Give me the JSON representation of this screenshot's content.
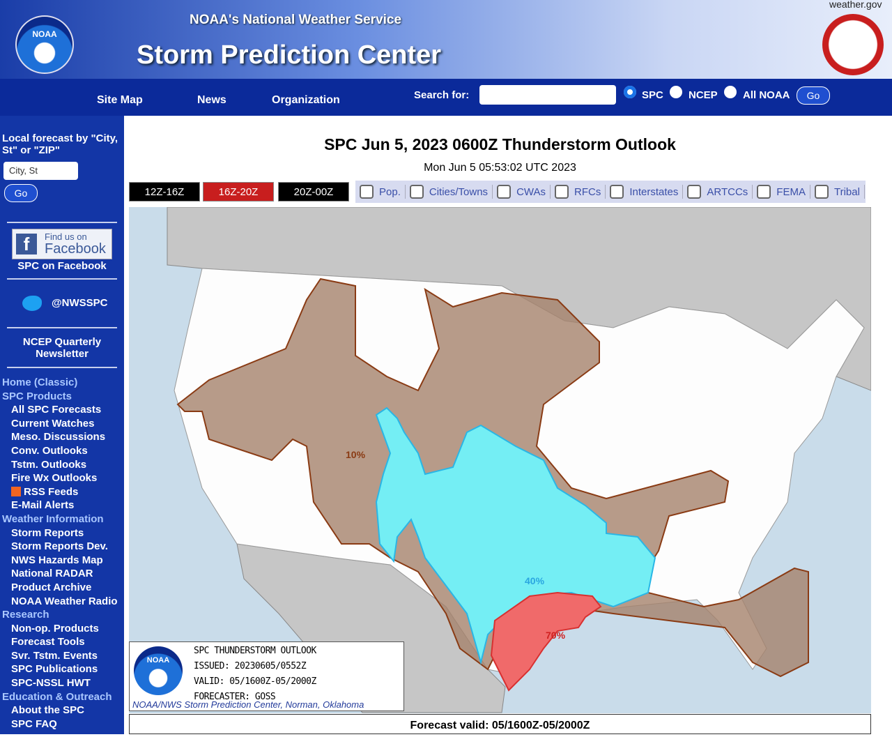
{
  "header": {
    "site_link": "weather.gov",
    "agency": "NOAA's National Weather Service",
    "title": "Storm Prediction Center",
    "logo": "NOAA",
    "nav": [
      "Site Map",
      "News",
      "Organization"
    ],
    "search_label": "Search for:",
    "search_options": [
      "SPC",
      "NCEP",
      "All NOAA"
    ],
    "search_button": "Go"
  },
  "sidebar": {
    "forecast_label": "Local forecast by \"City, St\" or \"ZIP\"",
    "forecast_placeholder": "City, St",
    "forecast_button": "Go",
    "facebook_badge_small": "Find us on",
    "facebook_badge_big": "Facebook",
    "facebook_caption": "SPC on Facebook",
    "twitter": "@NWSSPC",
    "newsletter": "NCEP Quarterly Newsletter",
    "menu": [
      {
        "title": "Home (Classic)",
        "items": []
      },
      {
        "title": "SPC Products",
        "items": [
          "All SPC Forecasts",
          "Current Watches",
          "Meso. Discussions",
          "Conv. Outlooks",
          "Tstm. Outlooks",
          "Fire Wx Outlooks",
          "RSS Feeds",
          "E-Mail Alerts"
        ]
      },
      {
        "title": "Weather Information",
        "items": [
          "Storm Reports",
          "Storm Reports Dev.",
          "NWS Hazards Map",
          "National RADAR",
          "Product Archive",
          "NOAA Weather Radio"
        ]
      },
      {
        "title": "Research",
        "items": [
          "Non-op. Products",
          "Forecast Tools",
          "Svr. Tstm. Events",
          "SPC Publications",
          "SPC-NSSL HWT"
        ]
      },
      {
        "title": "Education & Outreach",
        "items": [
          "About the SPC",
          "SPC FAQ"
        ]
      }
    ]
  },
  "main": {
    "title": "SPC Jun 5, 2023 0600Z Thunderstorm Outlook",
    "timestamp": "Mon Jun 5 05:53:02 UTC 2023",
    "tabs": [
      "12Z-16Z",
      "16Z-20Z",
      "20Z-00Z"
    ],
    "overlays": [
      "Pop.",
      "Cities/Towns",
      "CWAs",
      "RFCs",
      "Interstates",
      "ARTCCs",
      "FEMA",
      "Tribal"
    ],
    "map": {
      "labels": [
        "10%",
        "40%",
        "70%"
      ],
      "legend": {
        "logo": "NOAA",
        "lines": [
          "SPC THUNDERSTORM OUTLOOK",
          "ISSUED: 20230605/0552Z",
          "VALID: 05/1600Z-05/2000Z",
          "FORECASTER: GOSS"
        ],
        "credit": "NOAA/NWS Storm Prediction Center, Norman, Oklahoma"
      }
    },
    "footer": "Forecast valid: 05/1600Z-05/2000Z"
  }
}
